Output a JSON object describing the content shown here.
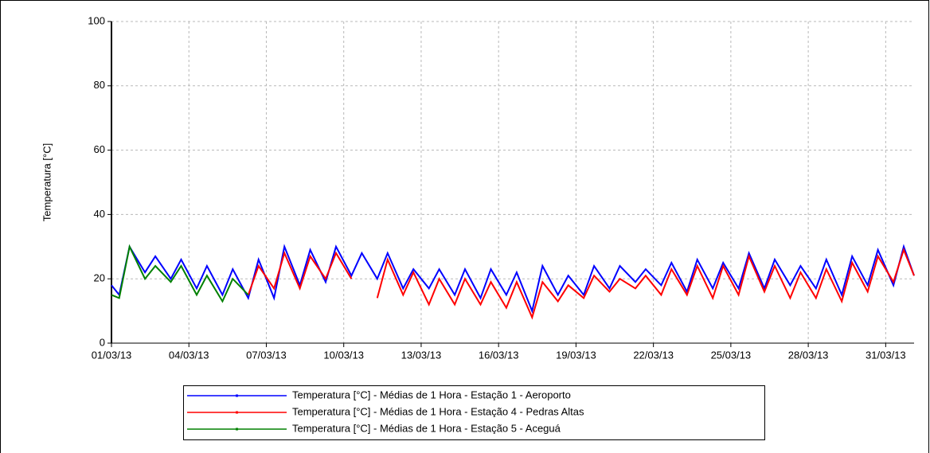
{
  "chart_data": {
    "type": "line",
    "y_label": "Temperatura [°C]",
    "x": [
      0,
      0.3,
      0.7,
      1.3,
      1.7,
      2.3,
      2.7,
      3.3,
      3.7,
      4.3,
      4.7,
      5.3,
      5.7,
      6.3,
      6.7,
      7.3,
      7.7,
      8.3,
      8.7,
      9.3,
      9.7,
      10.3,
      10.7,
      11.3,
      11.7,
      12.3,
      12.7,
      13.3,
      13.7,
      14.3,
      14.7,
      15.3,
      15.7,
      16.3,
      16.7,
      17.3,
      17.7,
      18.3,
      18.7,
      19.3,
      19.7,
      20.3,
      20.7,
      21.3,
      21.7,
      22.3,
      22.7,
      23.3,
      23.7,
      24.3,
      24.7,
      25.3,
      25.7,
      26.3,
      26.7,
      27.3,
      27.7,
      28.3,
      28.7,
      29.3,
      29.7,
      30.3,
      30.7,
      31.1
    ],
    "series": [
      {
        "name": "Temperatura [°C] - Médias de 1 Hora - Estação 1 - Aeroporto",
        "color": "#0000ff",
        "values": [
          18,
          15,
          30,
          22,
          27,
          20,
          26,
          17,
          24,
          15,
          23,
          14,
          26,
          14,
          30,
          18,
          29,
          19,
          30,
          21,
          28,
          20,
          28,
          17,
          23,
          17,
          23,
          15,
          23,
          14,
          23,
          15,
          22,
          10,
          24,
          15,
          21,
          15,
          24,
          17,
          24,
          19,
          23,
          18,
          25,
          16,
          26,
          17,
          25,
          17,
          28,
          17,
          26,
          18,
          24,
          17,
          26,
          15,
          27,
          18,
          29,
          18,
          30,
          21
        ]
      },
      {
        "name": "Temperatura [°C] - Médias de 1 Hora - Estação 4 - Pedras Altas",
        "color": "#ff0000",
        "values": [
          null,
          null,
          null,
          null,
          null,
          null,
          null,
          null,
          null,
          null,
          null,
          15,
          24,
          17,
          28,
          17,
          27,
          20,
          28,
          20,
          null,
          14,
          26,
          15,
          22,
          12,
          20,
          12,
          20,
          12,
          19,
          11,
          19,
          8,
          19,
          13,
          18,
          14,
          21,
          16,
          20,
          17,
          21,
          15,
          23,
          15,
          24,
          14,
          24,
          15,
          27,
          16,
          24,
          14,
          22,
          14,
          23,
          13,
          25,
          16,
          27,
          19,
          29,
          21
        ]
      },
      {
        "name": "Temperatura [°C] - Médias de 1 Hora - Estação 5 - Aceguá",
        "color": "#008000",
        "values": [
          15,
          14,
          30,
          20,
          24,
          19,
          24,
          15,
          21,
          13,
          20,
          15,
          null,
          null,
          null,
          null,
          null,
          null,
          null,
          null,
          null,
          null,
          null,
          null,
          null,
          null,
          null,
          null,
          null,
          null,
          null,
          null,
          null,
          null,
          null,
          null,
          null,
          null,
          null,
          null,
          null,
          null,
          null,
          null,
          null,
          null,
          null,
          null,
          null,
          null,
          null,
          null,
          null,
          null,
          null,
          null,
          null,
          null,
          null,
          null,
          null,
          null,
          null,
          null
        ]
      }
    ],
    "xlim": [
      0,
      31.1
    ],
    "xticks": [
      {
        "value": 0,
        "label": "01/03/13"
      },
      {
        "value": 3,
        "label": "04/03/13"
      },
      {
        "value": 6,
        "label": "07/03/13"
      },
      {
        "value": 9,
        "label": "10/03/13"
      },
      {
        "value": 12,
        "label": "13/03/13"
      },
      {
        "value": 15,
        "label": "16/03/13"
      },
      {
        "value": 18,
        "label": "19/03/13"
      },
      {
        "value": 21,
        "label": "22/03/13"
      },
      {
        "value": 24,
        "label": "25/03/13"
      },
      {
        "value": 27,
        "label": "28/03/13"
      },
      {
        "value": 30,
        "label": "31/03/13"
      }
    ],
    "ylim": [
      0,
      100
    ],
    "yticks": [
      0,
      20,
      40,
      60,
      80,
      100
    ],
    "grid": true
  }
}
